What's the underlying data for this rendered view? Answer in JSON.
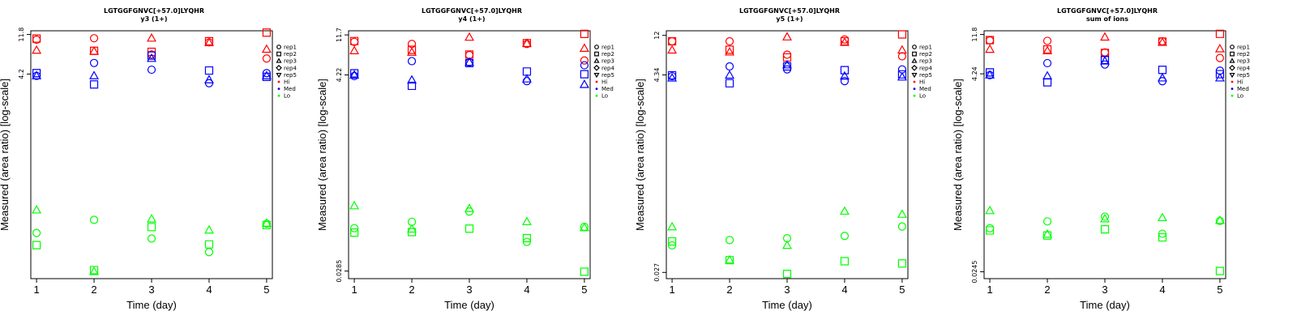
{
  "chart_data": [
    {
      "type": "scatter",
      "title": "LGTGGFGNVC[+57.0]LYQHR",
      "subtitle": "y3 (1+)",
      "xlabel": "Time (day)",
      "ylabel": "Measured (area ratio) [log-scale]",
      "scale": "log",
      "ylim": [
        0.02,
        13
      ],
      "xlim": [
        0.9,
        5.1
      ],
      "xticks": [
        "1",
        "2",
        "3",
        "4",
        "5"
      ],
      "yticks": [
        {
          "value": 11.8,
          "label": "11.8"
        },
        {
          "value": 4.2,
          "label": "4.2"
        }
      ],
      "series": [
        {
          "name": "Hi rep1",
          "level": "Hi",
          "rep": "rep1",
          "x": [
            1,
            2,
            3,
            4,
            5
          ],
          "y": [
            10.3,
            10.7,
            7.0,
            9.6,
            6.3
          ]
        },
        {
          "name": "Hi rep2",
          "level": "Hi",
          "rep": "rep2",
          "x": [
            1,
            2,
            3,
            4,
            5
          ],
          "y": [
            10.6,
            7.7,
            7.5,
            9.9,
            12.4
          ]
        },
        {
          "name": "Hi rep3",
          "level": "Hi",
          "rep": "rep3",
          "x": [
            1,
            2,
            3,
            4,
            5
          ],
          "y": [
            7.8,
            7.6,
            10.7,
            9.5,
            8.0
          ]
        },
        {
          "name": "Med rep1",
          "level": "Med",
          "rep": "rep1",
          "x": [
            1,
            2,
            3,
            4,
            5
          ],
          "y": [
            4.0,
            5.6,
            4.7,
            3.3,
            4.3
          ]
        },
        {
          "name": "Med rep2",
          "level": "Med",
          "rep": "rep2",
          "x": [
            1,
            2,
            3,
            4,
            5
          ],
          "y": [
            4.3,
            3.2,
            6.8,
            4.6,
            3.9
          ]
        },
        {
          "name": "Med rep3",
          "level": "Med",
          "rep": "rep3",
          "x": [
            1,
            2,
            3,
            4,
            5
          ],
          "y": [
            4.0,
            4.0,
            6.3,
            3.6,
            4.0
          ]
        },
        {
          "name": "Lo rep1",
          "level": "Lo",
          "rep": "rep1",
          "x": [
            1,
            2,
            3,
            4,
            5
          ],
          "y": [
            0.066,
            0.093,
            0.057,
            0.04,
            0.084
          ]
        },
        {
          "name": "Lo rep2",
          "level": "Lo",
          "rep": "rep2",
          "x": [
            1,
            2,
            3,
            4,
            5
          ],
          "y": [
            0.048,
            0.025,
            0.077,
            0.049,
            0.081
          ]
        },
        {
          "name": "Lo rep3",
          "level": "Lo",
          "rep": "rep3",
          "x": [
            1,
            2,
            3,
            4,
            5
          ],
          "y": [
            0.12,
            0.024,
            0.095,
            0.071,
            0.085
          ]
        }
      ]
    },
    {
      "type": "scatter",
      "title": "LGTGGFGNVC[+57.0]LYQHR",
      "subtitle": "y4 (1+)",
      "xlabel": "Time (day)",
      "ylabel": "Measured (area ratio) [log-scale]",
      "scale": "log",
      "ylim": [
        0.0235,
        13
      ],
      "xlim": [
        0.9,
        5.1
      ],
      "xticks": [
        "1",
        "2",
        "3",
        "4",
        "5"
      ],
      "yticks": [
        {
          "value": 11.7,
          "label": "11.7"
        },
        {
          "value": 4.22,
          "label": "4.22"
        },
        {
          "value": 0.0285,
          "label": "0.0285"
        }
      ],
      "series": [
        {
          "name": "Hi rep1",
          "level": "Hi",
          "rep": "rep1",
          "x": [
            1,
            2,
            3,
            4,
            5
          ],
          "y": [
            9.8,
            9.3,
            7.0,
            9.3,
            6.1
          ]
        },
        {
          "name": "Hi rep2",
          "level": "Hi",
          "rep": "rep2",
          "x": [
            1,
            2,
            3,
            4,
            5
          ],
          "y": [
            10.0,
            8.0,
            7.1,
            9.5,
            12.0
          ]
        },
        {
          "name": "Hi rep3",
          "level": "Hi",
          "rep": "rep3",
          "x": [
            1,
            2,
            3,
            4,
            5
          ],
          "y": [
            7.8,
            7.5,
            11.0,
            9.4,
            8.3
          ]
        },
        {
          "name": "Med rep1",
          "level": "Med",
          "rep": "rep1",
          "x": [
            1,
            2,
            3,
            4,
            5
          ],
          "y": [
            4.1,
            6.0,
            5.8,
            3.6,
            5.4
          ]
        },
        {
          "name": "Med rep2",
          "level": "Med",
          "rep": "rep2",
          "x": [
            1,
            2,
            3,
            4,
            5
          ],
          "y": [
            4.4,
            3.2,
            5.7,
            4.6,
            4.3
          ]
        },
        {
          "name": "Med rep3",
          "level": "Med",
          "rep": "rep3",
          "x": [
            1,
            2,
            3,
            4,
            5
          ],
          "y": [
            4.2,
            3.7,
            5.8,
            3.8,
            3.3
          ]
        },
        {
          "name": "Lo rep1",
          "level": "Lo",
          "rep": "rep1",
          "x": [
            1,
            2,
            3,
            4,
            5
          ],
          "y": [
            0.085,
            0.1,
            0.13,
            0.06,
            0.088
          ]
        },
        {
          "name": "Lo rep2",
          "level": "Lo",
          "rep": "rep2",
          "x": [
            1,
            2,
            3,
            4,
            5
          ],
          "y": [
            0.076,
            0.077,
            0.084,
            0.066,
            0.028
          ]
        },
        {
          "name": "Lo rep3",
          "level": "Lo",
          "rep": "rep3",
          "x": [
            1,
            2,
            3,
            4,
            5
          ],
          "y": [
            0.15,
            0.083,
            0.14,
            0.1,
            0.086
          ]
        }
      ]
    },
    {
      "type": "scatter",
      "title": "LGTGGFGNVC[+57.0]LYQHR",
      "subtitle": "y5 (1+)",
      "xlabel": "Time (day)",
      "ylabel": "Measured (area ratio) [log-scale]",
      "scale": "log",
      "ylim": [
        0.023,
        13.5
      ],
      "xlim": [
        0.9,
        5.1
      ],
      "xticks": [
        "1",
        "2",
        "3",
        "4",
        "5"
      ],
      "yticks": [
        {
          "value": 12,
          "label": "12"
        },
        {
          "value": 4.34,
          "label": "4.34"
        },
        {
          "value": 0.027,
          "label": "0.027"
        }
      ],
      "series": [
        {
          "name": "Hi rep1",
          "level": "Hi",
          "rep": "rep1",
          "x": [
            1,
            2,
            3,
            4,
            5
          ],
          "y": [
            10.3,
            10.3,
            7.3,
            10.8,
            7.0
          ]
        },
        {
          "name": "Hi rep2",
          "level": "Hi",
          "rep": "rep2",
          "x": [
            1,
            2,
            3,
            4,
            5
          ],
          "y": [
            10.3,
            8.3,
            6.8,
            10.3,
            12.3
          ]
        },
        {
          "name": "Hi rep3",
          "level": "Hi",
          "rep": "rep3",
          "x": [
            1,
            2,
            3,
            4,
            5
          ],
          "y": [
            8.2,
            7.8,
            11.5,
            10.0,
            8.2
          ]
        },
        {
          "name": "Med rep1",
          "level": "Med",
          "rep": "rep1",
          "x": [
            1,
            2,
            3,
            4,
            5
          ],
          "y": [
            4.2,
            5.4,
            5.0,
            3.7,
            5.0
          ]
        },
        {
          "name": "Med rep2",
          "level": "Med",
          "rep": "rep2",
          "x": [
            1,
            2,
            3,
            4,
            5
          ],
          "y": [
            4.3,
            3.5,
            5.4,
            4.9,
            4.4
          ]
        },
        {
          "name": "Med rep3",
          "level": "Med",
          "rep": "rep3",
          "x": [
            1,
            2,
            3,
            4,
            5
          ],
          "y": [
            4.0,
            4.3,
            5.6,
            4.2,
            4.1
          ]
        },
        {
          "name": "Lo rep1",
          "level": "Lo",
          "rep": "rep1",
          "x": [
            1,
            2,
            3,
            4,
            5
          ],
          "y": [
            0.054,
            0.062,
            0.065,
            0.069,
            0.088
          ]
        },
        {
          "name": "Lo rep2",
          "level": "Lo",
          "rep": "rep2",
          "x": [
            1,
            2,
            3,
            4,
            5
          ],
          "y": [
            0.06,
            0.037,
            0.026,
            0.036,
            0.034
          ]
        },
        {
          "name": "Lo rep3",
          "level": "Lo",
          "rep": "rep3",
          "x": [
            1,
            2,
            3,
            4,
            5
          ],
          "y": [
            0.087,
            0.037,
            0.054,
            0.13,
            0.12
          ]
        }
      ]
    },
    {
      "type": "scatter",
      "title": "LGTGGFGNVC[+57.0]LYQHR",
      "subtitle": "sum of ions",
      "xlabel": "Time (day)",
      "ylabel": "Measured (area ratio) [log-scale]",
      "scale": "log",
      "ylim": [
        0.0205,
        13
      ],
      "xlim": [
        0.9,
        5.1
      ],
      "xticks": [
        "1",
        "2",
        "3",
        "4",
        "5"
      ],
      "yticks": [
        {
          "value": 11.8,
          "label": "11.8"
        },
        {
          "value": 4.24,
          "label": "4.24"
        },
        {
          "value": 0.0245,
          "label": "0.0245"
        }
      ],
      "series": [
        {
          "name": "Hi rep1",
          "level": "Hi",
          "rep": "rep1",
          "x": [
            1,
            2,
            3,
            4,
            5
          ],
          "y": [
            10.1,
            10.0,
            7.4,
            9.9,
            6.4
          ]
        },
        {
          "name": "Hi rep2",
          "level": "Hi",
          "rep": "rep2",
          "x": [
            1,
            2,
            3,
            4,
            5
          ],
          "y": [
            10.2,
            8.0,
            7.3,
            9.8,
            12.0
          ]
        },
        {
          "name": "Hi rep3",
          "level": "Hi",
          "rep": "rep3",
          "x": [
            1,
            2,
            3,
            4,
            5
          ],
          "y": [
            8.0,
            7.7,
            11.0,
            9.6,
            8.1
          ]
        },
        {
          "name": "Med rep1",
          "level": "Med",
          "rep": "rep1",
          "x": [
            1,
            2,
            3,
            4,
            5
          ],
          "y": [
            4.1,
            5.6,
            5.4,
            3.5,
            4.6
          ]
        },
        {
          "name": "Med rep2",
          "level": "Med",
          "rep": "rep2",
          "x": [
            1,
            2,
            3,
            4,
            5
          ],
          "y": [
            4.4,
            3.4,
            6.1,
            4.7,
            4.2
          ]
        },
        {
          "name": "Med rep3",
          "level": "Med",
          "rep": "rep3",
          "x": [
            1,
            2,
            3,
            4,
            5
          ],
          "y": [
            4.1,
            4.0,
            5.9,
            3.8,
            3.8
          ]
        },
        {
          "name": "Lo rep1",
          "level": "Lo",
          "rep": "rep1",
          "x": [
            1,
            2,
            3,
            4,
            5
          ],
          "y": [
            0.076,
            0.091,
            0.103,
            0.066,
            0.092
          ]
        },
        {
          "name": "Lo rep2",
          "level": "Lo",
          "rep": "rep2",
          "x": [
            1,
            2,
            3,
            4,
            5
          ],
          "y": [
            0.072,
            0.063,
            0.074,
            0.06,
            0.025
          ]
        },
        {
          "name": "Lo rep3",
          "level": "Lo",
          "rep": "rep3",
          "x": [
            1,
            2,
            3,
            4,
            5
          ],
          "y": [
            0.12,
            0.065,
            0.097,
            0.1,
            0.093
          ]
        }
      ]
    }
  ],
  "legend": {
    "reps": [
      {
        "label": "rep1",
        "shape": "circle"
      },
      {
        "label": "rep2",
        "shape": "square"
      },
      {
        "label": "rep3",
        "shape": "triangle-up"
      },
      {
        "label": "rep4",
        "shape": "diamond"
      },
      {
        "label": "rep5",
        "shape": "triangle-down"
      }
    ],
    "levels": [
      {
        "label": "Hi",
        "color": "#ff0000"
      },
      {
        "label": "Med",
        "color": "#0000ff"
      },
      {
        "label": "Lo",
        "color": "#00ff00"
      }
    ]
  },
  "colors": {
    "Hi": "#ff0000",
    "Med": "#0000ff",
    "Lo": "#00ff00"
  }
}
